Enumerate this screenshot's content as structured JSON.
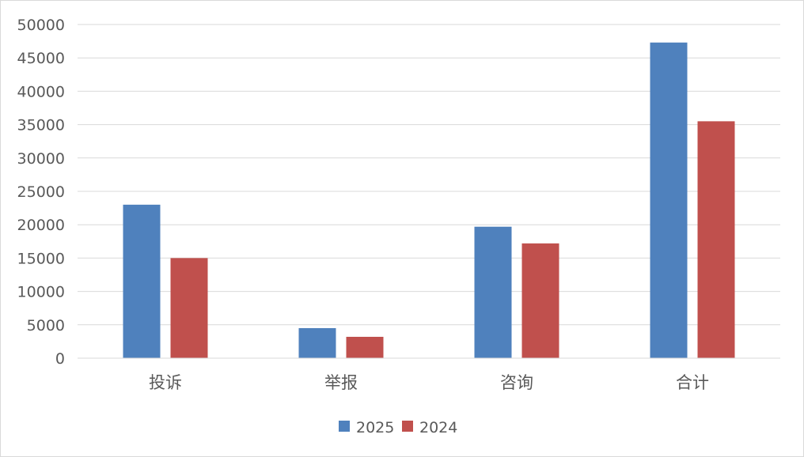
{
  "chart_data": {
    "type": "bar",
    "categories": [
      "投诉",
      "举报",
      "咨询",
      "合计"
    ],
    "series": [
      {
        "name": "2025",
        "color": "#4F81BD",
        "values": [
          23000,
          4500,
          19700,
          47300
        ]
      },
      {
        "name": "2024",
        "color": "#C0504D",
        "values": [
          15000,
          3200,
          17200,
          35500
        ]
      }
    ],
    "ylim": [
      0,
      50000
    ],
    "yticks": [
      0,
      5000,
      10000,
      15000,
      20000,
      25000,
      30000,
      35000,
      40000,
      45000,
      50000
    ],
    "grid": true,
    "legend": "bottom-center",
    "colors": {
      "gridline": "#d9d9d9",
      "axis": "#d9d9d9",
      "text": "#595959",
      "border": "#d9d9d9"
    }
  }
}
